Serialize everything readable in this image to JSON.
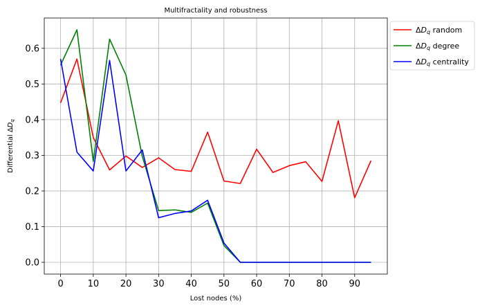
{
  "chart_data": {
    "type": "line",
    "title": "Multifractality and robustness",
    "xlabel": "Lost nodes (%)",
    "ylabel": "Differential ΔD_q",
    "xlim": [
      -5,
      100
    ],
    "ylim": [
      -0.033,
      0.685
    ],
    "xticks": [
      0,
      10,
      20,
      30,
      40,
      50,
      60,
      70,
      80,
      90
    ],
    "yticks": [
      0.0,
      0.1,
      0.2,
      0.3,
      0.4,
      0.5,
      0.6
    ],
    "grid": true,
    "legend_position": "outside-top-right",
    "x": [
      0,
      5,
      10,
      15,
      20,
      25,
      30,
      35,
      40,
      45,
      50,
      55,
      60,
      65,
      70,
      75,
      80,
      85,
      90,
      95
    ],
    "series": [
      {
        "name_prefix": "ΔD",
        "name_sub": "q",
        "name_suffix": " random",
        "color": "#ff0000",
        "values": [
          0.447,
          0.57,
          0.35,
          0.259,
          0.298,
          0.266,
          0.293,
          0.26,
          0.255,
          0.365,
          0.228,
          0.221,
          0.317,
          0.252,
          0.271,
          0.282,
          0.227,
          0.397,
          0.181,
          0.285
        ]
      },
      {
        "name_prefix": "ΔD",
        "name_sub": "q",
        "name_suffix": " degree",
        "color": "#008000",
        "values": [
          0.553,
          0.652,
          0.283,
          0.626,
          0.525,
          0.297,
          0.145,
          0.147,
          0.14,
          0.166,
          0.047,
          0.0,
          0.0,
          0.0,
          0.0,
          0.0,
          0.0,
          0.0,
          0.0,
          0.0
        ]
      },
      {
        "name_prefix": "ΔD",
        "name_sub": "q",
        "name_suffix": " centrality",
        "color": "#0000ff",
        "values": [
          0.57,
          0.309,
          0.256,
          0.566,
          0.256,
          0.315,
          0.125,
          0.137,
          0.144,
          0.174,
          0.054,
          0.0,
          0.0,
          0.0,
          0.0,
          0.0,
          0.0,
          0.0,
          0.0,
          0.0
        ]
      }
    ]
  }
}
